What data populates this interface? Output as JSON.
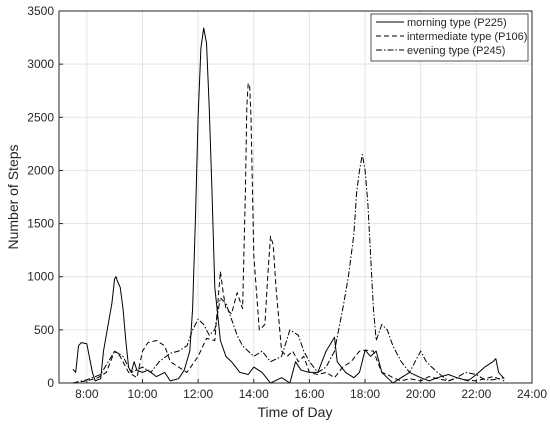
{
  "chart_data": {
    "type": "line",
    "title": "",
    "xlabel": "Time of Day",
    "ylabel": "Number of Steps",
    "xlim": [
      7,
      24
    ],
    "ylim": [
      0,
      3500
    ],
    "xticks": [
      8,
      10,
      12,
      14,
      16,
      18,
      20,
      22,
      24
    ],
    "xtick_labels": [
      "8:00",
      "10:00",
      "12:00",
      "14:00",
      "16:00",
      "18:00",
      "20:00",
      "22:00",
      "24:00"
    ],
    "yticks": [
      0,
      500,
      1000,
      1500,
      2000,
      2500,
      3000,
      3500
    ],
    "ytick_labels": [
      "0",
      "500",
      "1000",
      "1500",
      "2000",
      "2500",
      "3000",
      "3500"
    ],
    "grid": true,
    "legend_position": "top-right",
    "series": [
      {
        "name": "morning type (P225)",
        "dash": "solid",
        "color": "#000000",
        "x": [
          7.5,
          7.6,
          7.7,
          7.8,
          8.0,
          8.2,
          8.3,
          8.5,
          8.6,
          8.8,
          8.9,
          9.0,
          9.05,
          9.1,
          9.2,
          9.3,
          9.4,
          9.5,
          9.6,
          9.7,
          9.8,
          10.0,
          10.2,
          10.5,
          10.8,
          11.0,
          11.3,
          11.5,
          11.7,
          11.8,
          11.9,
          12.0,
          12.1,
          12.2,
          12.3,
          12.4,
          12.5,
          12.6,
          12.8,
          13.0,
          13.2,
          13.5,
          13.8,
          14.0,
          14.3,
          14.6,
          15.0,
          15.3,
          15.5,
          15.7,
          16.0,
          16.3,
          16.6,
          16.9,
          17.0,
          17.3,
          17.6,
          17.8,
          18.0,
          18.2,
          18.4,
          18.6,
          18.8,
          19.0,
          19.3,
          19.6,
          20.0,
          20.3,
          20.6,
          21.0,
          21.3,
          21.7,
          22.0,
          22.3,
          22.6,
          22.7,
          22.8,
          23.0
        ],
        "y": [
          130,
          100,
          350,
          380,
          370,
          100,
          20,
          40,
          300,
          600,
          750,
          980,
          1000,
          960,
          900,
          700,
          400,
          150,
          100,
          200,
          120,
          100,
          120,
          60,
          100,
          20,
          40,
          120,
          300,
          700,
          1500,
          2500,
          3150,
          3340,
          3200,
          2600,
          1800,
          900,
          400,
          250,
          200,
          100,
          80,
          150,
          100,
          0,
          50,
          0,
          200,
          120,
          100,
          100,
          300,
          430,
          200,
          100,
          50,
          100,
          310,
          250,
          300,
          100,
          50,
          0,
          50,
          100,
          50,
          20,
          50,
          80,
          50,
          20,
          80,
          150,
          200,
          230,
          100,
          40
        ]
      },
      {
        "name": "intermediate type (P106)",
        "dash": "dashed",
        "color": "#000000",
        "x": [
          7.5,
          8.0,
          8.4,
          8.7,
          9.0,
          9.2,
          9.5,
          9.8,
          10.0,
          10.2,
          10.5,
          10.8,
          11.0,
          11.3,
          11.6,
          12.0,
          12.3,
          12.6,
          12.8,
          12.9,
          13.0,
          13.2,
          13.4,
          13.6,
          13.7,
          13.75,
          13.8,
          13.85,
          13.9,
          14.0,
          14.2,
          14.4,
          14.5,
          14.6,
          14.7,
          14.8,
          14.9,
          15.0,
          15.2,
          15.4,
          15.6,
          15.8,
          16.0,
          16.3,
          16.6,
          16.9,
          17.2,
          17.5,
          17.8,
          18.0,
          18.3,
          18.6,
          18.8,
          19.0,
          19.3,
          19.6,
          20.0,
          20.3,
          20.6,
          21.0,
          21.3,
          21.6,
          22.0,
          22.3,
          22.6,
          23.0
        ],
        "y": [
          0,
          20,
          50,
          100,
          300,
          250,
          100,
          50,
          300,
          380,
          400,
          350,
          200,
          150,
          100,
          250,
          420,
          400,
          1050,
          850,
          700,
          650,
          850,
          700,
          1800,
          2600,
          2820,
          2800,
          2500,
          1200,
          500,
          550,
          1000,
          1380,
          1300,
          900,
          600,
          300,
          250,
          300,
          200,
          250,
          100,
          80,
          100,
          50,
          150,
          200,
          300,
          310,
          300,
          100,
          80,
          50,
          20,
          40,
          20,
          60,
          40,
          20,
          50,
          30,
          20,
          40,
          60,
          20
        ]
      },
      {
        "name": "evening type (P245)",
        "dash": "dashdot",
        "color": "#000000",
        "x": [
          7.5,
          8.0,
          8.5,
          9.0,
          9.3,
          9.6,
          10.0,
          10.3,
          10.6,
          11.0,
          11.3,
          11.6,
          11.8,
          12.0,
          12.2,
          12.4,
          12.6,
          12.8,
          13.0,
          13.2,
          13.4,
          13.6,
          13.8,
          14.0,
          14.3,
          14.6,
          15.0,
          15.3,
          15.6,
          15.8,
          16.0,
          16.3,
          16.6,
          16.9,
          17.2,
          17.4,
          17.6,
          17.7,
          17.8,
          17.9,
          18.0,
          18.1,
          18.2,
          18.3,
          18.4,
          18.6,
          18.8,
          19.0,
          19.3,
          19.6,
          19.8,
          20.0,
          20.2,
          20.4,
          20.6,
          21.0,
          21.3,
          21.6,
          22.0,
          22.3,
          22.6,
          23.0
        ],
        "y": [
          0,
          30,
          80,
          300,
          250,
          100,
          150,
          100,
          200,
          280,
          300,
          350,
          500,
          600,
          550,
          450,
          500,
          800,
          750,
          600,
          450,
          350,
          300,
          250,
          300,
          200,
          250,
          500,
          450,
          300,
          200,
          100,
          150,
          300,
          700,
          1000,
          1400,
          1800,
          2000,
          2150,
          2000,
          1700,
          1200,
          700,
          400,
          550,
          500,
          350,
          200,
          100,
          200,
          300,
          200,
          150,
          100,
          20,
          50,
          100,
          80,
          30,
          30,
          50
        ]
      }
    ]
  }
}
